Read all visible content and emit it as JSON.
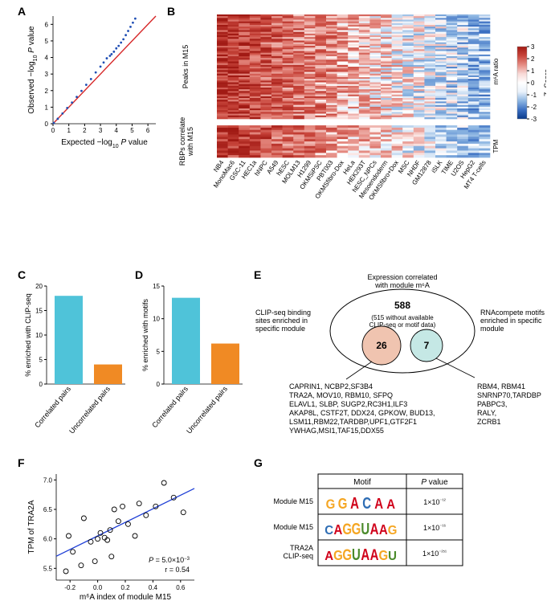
{
  "panelA": {
    "label": "A",
    "type": "scatter-line",
    "x_label": "Expected −log₁₀ P value",
    "y_label": "Observed −log₁₀ P value",
    "xlim": [
      0,
      6.5
    ],
    "ylim": [
      0,
      6.5
    ],
    "xticks": [
      0,
      1,
      2,
      3,
      4,
      5,
      6
    ],
    "yticks": [
      0,
      1,
      2,
      3,
      4,
      5,
      6
    ],
    "identity_line_color": "#d62728",
    "points_color": "#1f4eb4",
    "points": [
      [
        0.05,
        0.05
      ],
      [
        0.3,
        0.3
      ],
      [
        0.6,
        0.62
      ],
      [
        0.9,
        0.95
      ],
      [
        1.2,
        1.28
      ],
      [
        1.5,
        1.62
      ],
      [
        1.8,
        1.98
      ],
      [
        2.1,
        2.35
      ],
      [
        2.4,
        2.7
      ],
      [
        2.7,
        3.1
      ],
      [
        3.0,
        3.45
      ],
      [
        3.2,
        3.7
      ],
      [
        3.4,
        3.95
      ],
      [
        3.6,
        4.1
      ],
      [
        3.7,
        4.2
      ],
      [
        3.85,
        4.35
      ],
      [
        4.0,
        4.55
      ],
      [
        4.15,
        4.7
      ],
      [
        4.3,
        4.9
      ],
      [
        4.45,
        5.1
      ],
      [
        4.6,
        5.35
      ],
      [
        4.75,
        5.6
      ],
      [
        4.9,
        5.85
      ],
      [
        5.05,
        6.1
      ],
      [
        5.2,
        6.35
      ]
    ],
    "label_fontsize": 10
  },
  "panelB": {
    "label": "B",
    "type": "heatmap",
    "top_label": "Peaks in M15",
    "bottom_label": "RBPs correlate\nwith M15",
    "right_top_label": "m⁶A ratio",
    "right_bottom_label": "TPM",
    "colorbar_label": "Z−Score",
    "colorbar_range": [
      -3,
      3
    ],
    "colorbar_ticks": [
      -3,
      -2,
      -1,
      0,
      1,
      2,
      3
    ],
    "colorbar_colors": [
      "#0a3a8a",
      "#3b6fc2",
      "#8db6e2",
      "#eaf2fb",
      "#ffffff",
      "#f8d9d6",
      "#e58b82",
      "#c8453b",
      "#a11a14"
    ],
    "columns": [
      "NB4",
      "MonoMac6",
      "GSC-11",
      "HEC1a",
      "hNPC",
      "A549",
      "hESC",
      "MOLM13",
      "H1299",
      "OKMSiPSC",
      "PBT003",
      "OKMSfibro-Dox",
      "HeLa",
      "HEK293T",
      "hESC_NPCs",
      "Mesoendoderm",
      "OKMSfibro+Dox",
      "MSC",
      "NHDF",
      "GM12878",
      "iSLK",
      "TIME",
      "U2OS",
      "HepG2",
      "MT4 T-cells"
    ],
    "top_rows": 60,
    "bottom_rows": 14,
    "label_fontsize": 9
  },
  "panelC": {
    "label": "C",
    "type": "bar",
    "y_label": "% enriched with CLIP-seq",
    "categories": [
      "Correlated pairs",
      "Uncorrelated pairs"
    ],
    "values": [
      18,
      4
    ],
    "bar_colors": [
      "#4fc3d9",
      "#f08a24"
    ],
    "ylim": [
      0,
      20
    ],
    "yticks": [
      0,
      5,
      10,
      15,
      20
    ],
    "label_fontsize": 9
  },
  "panelD": {
    "label": "D",
    "type": "bar",
    "y_label": "% enriched with motifs",
    "categories": [
      "Correlated pairs",
      "Uncorrelated pairs"
    ],
    "values": [
      13.2,
      6.2
    ],
    "bar_colors": [
      "#4fc3d9",
      "#f08a24"
    ],
    "ylim": [
      0,
      15
    ],
    "yticks": [
      0,
      5,
      10,
      15
    ],
    "label_fontsize": 9
  },
  "panelE": {
    "label": "E",
    "type": "venn",
    "title": "Expression correlated\nwith module m⁶A",
    "outer_count": "588",
    "outer_note": "(515 without available\nCLIP-seq or motif data)",
    "left_label": "CLIP-seq binding\nsites enriched in\nspecific module",
    "right_label": "RNAcompete motifs\nenriched in specific\nmodule",
    "left_count": "26",
    "right_count": "7",
    "left_fill": "#f0c4b0",
    "right_fill": "#c5e8e5",
    "left_genes": "CAPRIN1, NCBP2,SF3B4\nTRA2A, MOV10, RBM10, SFPQ\nELAVL1, SLBP, SUGP2,RC3H1,ILF3\nAKAP8L, CSTF2T, DDX24, GPKOW, BUD13,\nLSM11,RBM22,TARDBP,UPF1,GTF2F1\nYWHAG,MSI1,TAF15,DDX55",
    "right_genes": "RBM4, RBM41\nSNRNP70,TARDBP\nPABPC3,\nRALY,\nZCRB1",
    "label_fontsize": 9
  },
  "panelF": {
    "label": "F",
    "type": "scatter",
    "x_label": "m⁶A index of module M15",
    "y_label": "TPM of TRA2A",
    "xlim": [
      -0.3,
      0.7
    ],
    "ylim": [
      5.3,
      7.1
    ],
    "xticks": [
      -0.2,
      0.0,
      0.2,
      0.4,
      0.6
    ],
    "yticks": [
      5.5,
      6.0,
      6.5,
      7.0
    ],
    "fit_color": "#1f3fd6",
    "point_color": "#000000",
    "points": [
      [
        -0.23,
        5.45
      ],
      [
        -0.21,
        6.05
      ],
      [
        -0.18,
        5.78
      ],
      [
        -0.12,
        5.55
      ],
      [
        -0.1,
        6.35
      ],
      [
        -0.05,
        5.95
      ],
      [
        -0.02,
        5.62
      ],
      [
        0.0,
        6.0
      ],
      [
        0.02,
        6.1
      ],
      [
        0.05,
        6.02
      ],
      [
        0.07,
        5.98
      ],
      [
        0.09,
        6.15
      ],
      [
        0.1,
        5.7
      ],
      [
        0.12,
        6.5
      ],
      [
        0.15,
        6.3
      ],
      [
        0.18,
        6.55
      ],
      [
        0.22,
        6.25
      ],
      [
        0.27,
        6.05
      ],
      [
        0.3,
        6.6
      ],
      [
        0.35,
        6.4
      ],
      [
        0.42,
        6.55
      ],
      [
        0.48,
        6.95
      ],
      [
        0.55,
        6.7
      ],
      [
        0.62,
        6.45
      ]
    ],
    "fit_slope": 1.15,
    "fit_intercept": 6.05,
    "stats_text": "P = 5.0×10⁻³\nr = 0.54",
    "label_fontsize": 10
  },
  "panelG": {
    "label": "G",
    "type": "table",
    "headers": [
      "",
      "Motif",
      "P value"
    ],
    "rows": [
      {
        "name": "Module M15",
        "motif": "GGACAA",
        "pval": "1×10⁻¹²",
        "colors": [
          "#f5a623",
          "#f5a623",
          "#d0021b",
          "#2e6db4",
          "#d0021b",
          "#d0021b"
        ]
      },
      {
        "name": "Module M15",
        "motif": "CAGGUAAG",
        "pval": "1×10⁻¹⁶",
        "colors": [
          "#2e6db4",
          "#d0021b",
          "#f5a623",
          "#f5a623",
          "#4a8a2a",
          "#d0021b",
          "#d0021b",
          "#f5a623"
        ]
      },
      {
        "name": "TRA2A\nCLIP-seq",
        "motif": "AGGUAAGU",
        "pval": "1×10⁻²⁵¹",
        "colors": [
          "#d0021b",
          "#f5a623",
          "#f5a623",
          "#4a8a2a",
          "#d0021b",
          "#d0021b",
          "#f5a623",
          "#4a8a2a"
        ]
      }
    ],
    "label_fontsize": 9
  }
}
